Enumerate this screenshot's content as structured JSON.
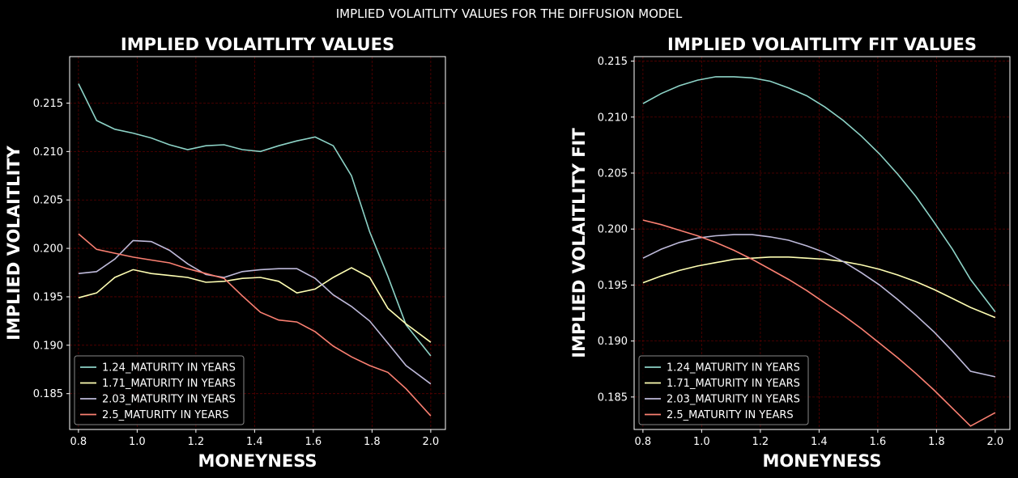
{
  "suptitle": "IMPLIED VOLAITLITY VALUES FOR THE DIFFUSION MODEL",
  "colors": {
    "background": "#000000",
    "grid": "#5a0000",
    "axes": "#ffffff"
  },
  "chart_data": [
    {
      "type": "line",
      "title": "IMPLIED VOLAITLITY VALUES",
      "xlabel": "MONEYNESS",
      "ylabel": "IMPLIED VOLAITLITY",
      "xlim": [
        0.77,
        2.05
      ],
      "ylim": [
        0.1813,
        0.2198
      ],
      "xticks": [
        0.8,
        1.0,
        1.2,
        1.4,
        1.6,
        1.8,
        2.0
      ],
      "xtick_labels": [
        "0.8",
        "1.0",
        "1.2",
        "1.4",
        "1.6",
        "1.8",
        "2.0"
      ],
      "yticks": [
        0.185,
        0.19,
        0.195,
        0.2,
        0.205,
        0.21,
        0.215
      ],
      "ytick_labels": [
        "0.185",
        "0.190",
        "0.195",
        "0.200",
        "0.205",
        "0.210",
        "0.215"
      ],
      "grid": true,
      "legend_position": "lower-left",
      "x": [
        0.8,
        0.862,
        0.924,
        0.986,
        1.048,
        1.11,
        1.172,
        1.234,
        1.296,
        1.358,
        1.42,
        1.482,
        1.544,
        1.606,
        1.668,
        1.73,
        1.792,
        1.854,
        1.916,
        2.0
      ],
      "series": [
        {
          "name": "1.24_MATURITY IN YEARS",
          "color": "#8dd3c7",
          "values": [
            0.217,
            0.2132,
            0.2123,
            0.2119,
            0.2114,
            0.2107,
            0.2102,
            0.2106,
            0.2107,
            0.2102,
            0.21,
            0.2106,
            0.2111,
            0.2115,
            0.2106,
            0.2075,
            0.2017,
            0.1971,
            0.1921,
            0.1889
          ]
        },
        {
          "name": "1.71_MATURITY IN YEARS",
          "color": "#ffffb3",
          "values": [
            0.1949,
            0.1954,
            0.197,
            0.1978,
            0.1974,
            0.1972,
            0.197,
            0.1965,
            0.1966,
            0.1969,
            0.197,
            0.1966,
            0.1954,
            0.1958,
            0.197,
            0.198,
            0.197,
            0.1938,
            0.1922,
            0.1903
          ]
        },
        {
          "name": "2.03_MATURITY IN YEARS",
          "color": "#bebada",
          "values": [
            0.1974,
            0.1976,
            0.1989,
            0.2008,
            0.2007,
            0.1998,
            0.1984,
            0.1973,
            0.197,
            0.1976,
            0.1978,
            0.1979,
            0.1979,
            0.1969,
            0.1952,
            0.194,
            0.1925,
            0.1902,
            0.1879,
            0.186
          ]
        },
        {
          "name": "2.5_MATURITY IN YEARS",
          "color": "#fb8072",
          "values": [
            0.2015,
            0.1999,
            0.1995,
            0.1991,
            0.1988,
            0.1985,
            0.1979,
            0.1974,
            0.1969,
            0.1951,
            0.1934,
            0.1926,
            0.1924,
            0.1914,
            0.1899,
            0.1888,
            0.1879,
            0.1872,
            0.1855,
            0.1827
          ]
        }
      ]
    },
    {
      "type": "line",
      "title": "IMPLIED VOLAITLITY FIT  VALUES",
      "xlabel": "MONEYNESS",
      "ylabel": "IMPLIED VOLAITLITY FIT",
      "xlim": [
        0.77,
        2.05
      ],
      "ylim": [
        0.1821,
        0.2154
      ],
      "xticks": [
        0.8,
        1.0,
        1.2,
        1.4,
        1.6,
        1.8,
        2.0
      ],
      "xtick_labels": [
        "0.8",
        "1.0",
        "1.2",
        "1.4",
        "1.6",
        "1.8",
        "2.0"
      ],
      "yticks": [
        0.185,
        0.19,
        0.195,
        0.2,
        0.205,
        0.21,
        0.215
      ],
      "ytick_labels": [
        "0.185",
        "0.190",
        "0.195",
        "0.200",
        "0.205",
        "0.210",
        "0.215"
      ],
      "grid": true,
      "legend_position": "lower-left",
      "x": [
        0.8,
        0.862,
        0.924,
        0.986,
        1.048,
        1.11,
        1.172,
        1.234,
        1.296,
        1.358,
        1.42,
        1.482,
        1.544,
        1.606,
        1.668,
        1.73,
        1.792,
        1.854,
        1.916,
        2.0
      ],
      "series": [
        {
          "name": "1.24_MATURITY IN YEARS",
          "color": "#8dd3c7",
          "values": [
            0.2112,
            0.2121,
            0.2128,
            0.2133,
            0.2136,
            0.2136,
            0.2135,
            0.2132,
            0.2126,
            0.2119,
            0.2109,
            0.2097,
            0.2083,
            0.2067,
            0.2049,
            0.2029,
            0.2006,
            0.1982,
            0.1955,
            0.1926
          ]
        },
        {
          "name": "1.71_MATURITY IN YEARS",
          "color": "#ffffb3",
          "values": [
            0.1952,
            0.1958,
            0.1963,
            0.1967,
            0.197,
            0.1973,
            0.1974,
            0.1975,
            0.1975,
            0.1974,
            0.1973,
            0.1971,
            0.1968,
            0.1964,
            0.1959,
            0.1953,
            0.1946,
            0.1938,
            0.193,
            0.1921
          ]
        },
        {
          "name": "2.03_MATURITY IN YEARS",
          "color": "#bebada",
          "values": [
            0.1974,
            0.1982,
            0.1988,
            0.1992,
            0.1994,
            0.1995,
            0.1995,
            0.1993,
            0.199,
            0.1985,
            0.1979,
            0.1971,
            0.1961,
            0.195,
            0.1937,
            0.1923,
            0.1908,
            0.1891,
            0.1873,
            0.1868
          ]
        },
        {
          "name": "2.5_MATURITY IN YEARS",
          "color": "#fb8072",
          "values": [
            0.2008,
            0.2004,
            0.1999,
            0.1994,
            0.1988,
            0.1981,
            0.1973,
            0.1964,
            0.1955,
            0.1945,
            0.1934,
            0.1923,
            0.1911,
            0.1898,
            0.1885,
            0.1871,
            0.1856,
            0.184,
            0.1824,
            0.1836
          ]
        }
      ]
    }
  ]
}
